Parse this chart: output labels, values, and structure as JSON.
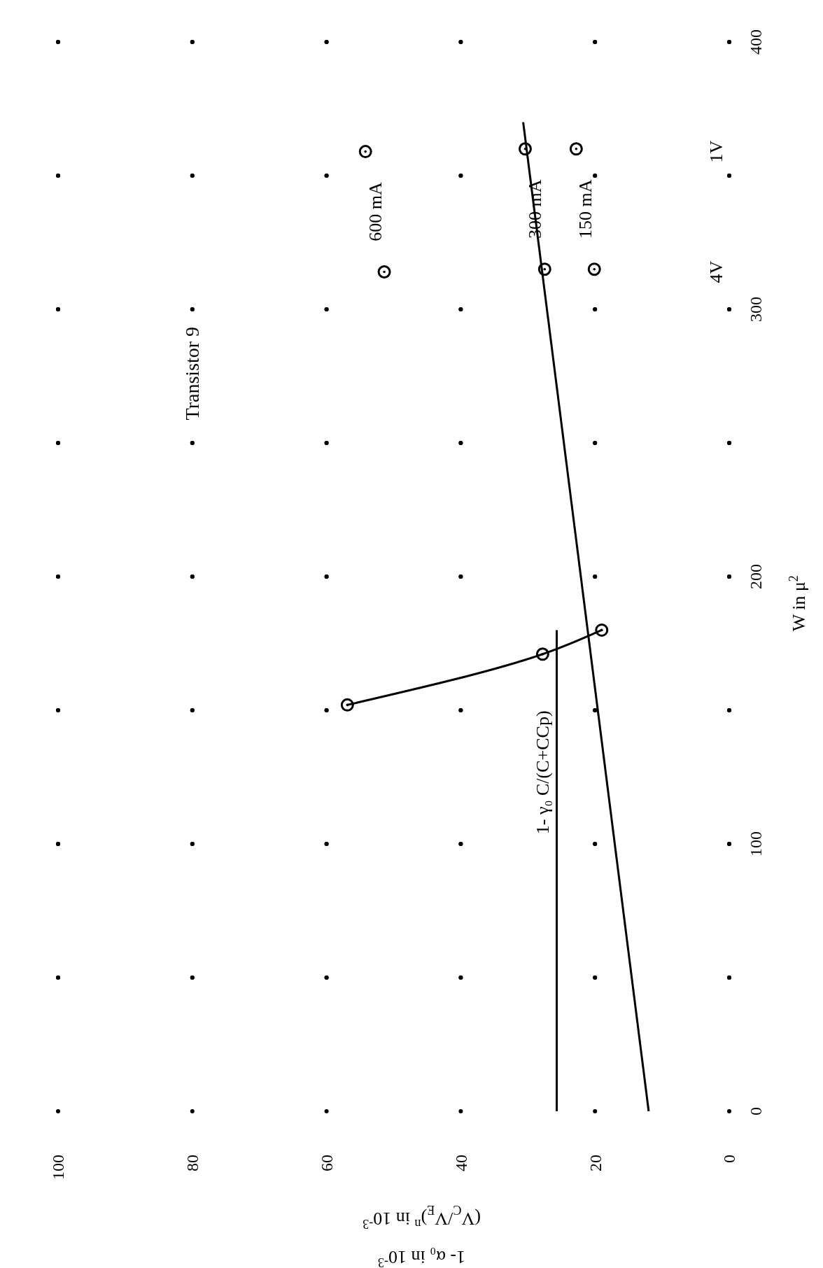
{
  "chart_data": {
    "type": "scatter",
    "title": "Transistor 9",
    "ylabel": "W in μ$^{2}$",
    "xlabel": "1- α₀ in 10$^{-3}$\n(V$_{C}$/V$_{E}$)$^{n}$ in 10$^{-3}$",
    "xlim": [
      100,
      0
    ],
    "ylim": [
      0,
      400
    ],
    "legend": false,
    "yticks": [
      0,
      {
        "value": 50,
        "label": null
      },
      100,
      {
        "value": 150,
        "label": null
      },
      200,
      {
        "value": 250,
        "label": null
      },
      300,
      {
        "value": 350,
        "label": null
      },
      400
    ],
    "xticks": [
      100,
      80,
      60,
      40,
      20,
      0
    ],
    "grid": true,
    "marker": "circle",
    "series": [
      {
        "name": "600 mA",
        "color": "#000000",
        "x": [
          54.2,
          51.4
        ],
        "values": [
          359,
          314
        ]
      },
      {
        "name": "300 mA",
        "color": "#000000",
        "x": [
          30.4,
          27.5
        ],
        "values": [
          360,
          315
        ]
      },
      {
        "name": "150 mA",
        "color": "#000000",
        "x": [
          22.8,
          20.1
        ],
        "values": [
          360,
          315
        ]
      },
      {
        "type": "line",
        "color": "#000000",
        "marker": "circle",
        "x": [
          56.9,
          27.8,
          19.0
        ],
        "values": [
          152,
          171,
          180
        ]
      },
      {
        "type": "line",
        "color": "#000000",
        "marker": "none",
        "x": [
          12.0,
          30.7
        ],
        "values": [
          0,
          370
        ]
      },
      {
        "name": "1- γ₀ C/(C+CCp)",
        "type": "line",
        "color": "#000000",
        "marker": "none",
        "x": [
          25.7,
          25.7
        ],
        "values": [
          0,
          180
        ]
      }
    ],
    "annotations": [
      "1V",
      "4V"
    ]
  }
}
